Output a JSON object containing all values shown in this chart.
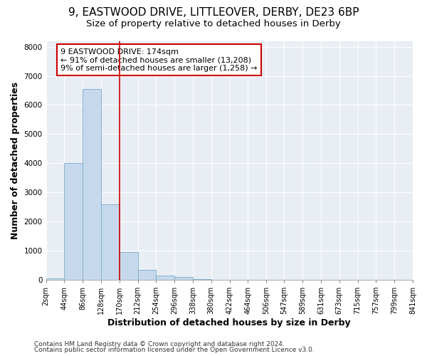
{
  "title_line1": "9, EASTWOOD DRIVE, LITTLEOVER, DERBY, DE23 6BP",
  "title_line2": "Size of property relative to detached houses in Derby",
  "xlabel": "Distribution of detached houses by size in Derby",
  "ylabel": "Number of detached properties",
  "footer_line1": "Contains HM Land Registry data © Crown copyright and database right 2024.",
  "footer_line2": "Contains public sector information licensed under the Open Government Licence v3.0.",
  "annotation_line1": "9 EASTWOOD DRIVE: 174sqm",
  "annotation_line2": "← 91% of detached houses are smaller (13,208)",
  "annotation_line3": "9% of semi-detached houses are larger (1,258) →",
  "bar_edges": [
    2,
    44,
    86,
    128,
    170,
    212,
    254,
    296,
    338,
    380,
    422,
    464,
    506,
    547,
    589,
    631,
    673,
    715,
    757,
    799,
    841
  ],
  "bar_heights": [
    50,
    4000,
    6550,
    2600,
    950,
    340,
    150,
    95,
    20,
    0,
    0,
    0,
    0,
    0,
    0,
    0,
    0,
    0,
    0,
    0
  ],
  "bar_color": "#c6d9ec",
  "bar_edge_color": "#7aaacb",
  "property_line_x": 170,
  "property_line_color": "#cc0000",
  "annotation_box_color": "#cc0000",
  "fig_background_color": "#ffffff",
  "plot_background_color": "#e8eef4",
  "grid_color": "#ffffff",
  "ylim": [
    0,
    8200
  ],
  "yticks": [
    0,
    1000,
    2000,
    3000,
    4000,
    5000,
    6000,
    7000,
    8000
  ],
  "tick_labels": [
    "2sqm",
    "44sqm",
    "86sqm",
    "128sqm",
    "170sqm",
    "212sqm",
    "254sqm",
    "296sqm",
    "338sqm",
    "380sqm",
    "422sqm",
    "464sqm",
    "506sqm",
    "547sqm",
    "589sqm",
    "631sqm",
    "673sqm",
    "715sqm",
    "757sqm",
    "799sqm",
    "841sqm"
  ],
  "title_fontsize": 11,
  "subtitle_fontsize": 9.5,
  "axis_label_fontsize": 9,
  "tick_fontsize": 7,
  "annotation_fontsize": 8,
  "footer_fontsize": 6.5
}
